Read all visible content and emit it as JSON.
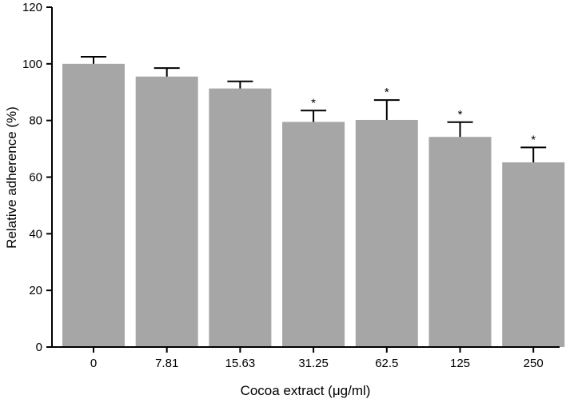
{
  "chart_data": {
    "type": "bar",
    "title": "",
    "xlabel": "Cocoa extract (μg/ml)",
    "ylabel": "Relative adherence (%)",
    "ylim": [
      0,
      120
    ],
    "yticks": [
      0,
      20,
      40,
      60,
      80,
      100,
      120
    ],
    "categories": [
      "0",
      "7.81",
      "15.63",
      "31.25",
      "62.5",
      "125",
      "250"
    ],
    "values": [
      100,
      95.5,
      91.3,
      79.5,
      80.2,
      74.2,
      65.2
    ],
    "errors": [
      2.5,
      3.0,
      2.5,
      4.0,
      7.0,
      5.2,
      5.3
    ],
    "annotations": [
      "",
      "",
      "",
      "*",
      "*",
      "*",
      "*"
    ],
    "bar_color": "#a6a6a6",
    "error_color": "#000000",
    "grid": false,
    "legend": false
  }
}
